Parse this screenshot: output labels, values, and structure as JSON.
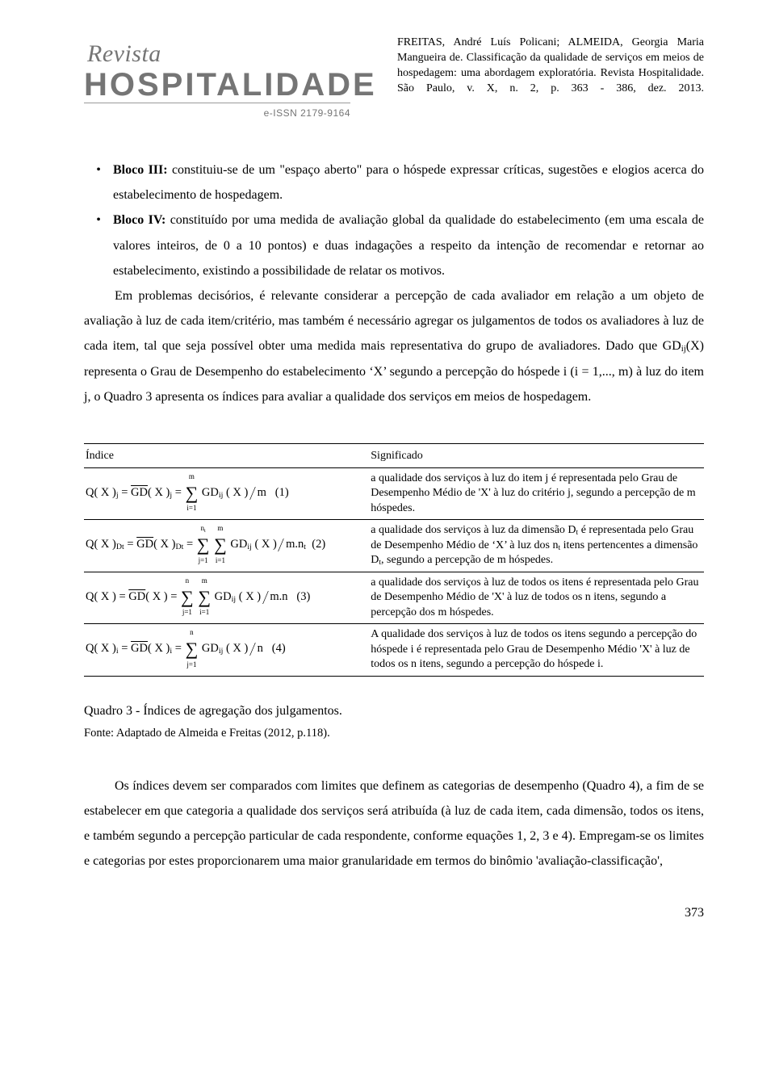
{
  "logo": {
    "top": "Revista",
    "main": "HOSPITALIDADE",
    "issn": "e-ISSN 2179-9164"
  },
  "citation": "FREITAS, André Luís Policani; ALMEIDA, Georgia Maria Mangueira de. Classificação da qualidade de serviços em meios de hospedagem: uma abordagem exploratória. Revista Hospitalidade. São Paulo, v. X, n. 2, p. 363 - 386, dez. 2013.",
  "bullets": {
    "b3_label": "Bloco III:",
    "b3_text": " constituiu-se de um \"espaço aberto\" para o hóspede expressar críticas, sugestões e elogios acerca do estabelecimento de hospedagem.",
    "b4_label": "Bloco IV:",
    "b4_text": " constituído por uma medida de avaliação global da qualidade do estabelecimento (em uma escala de valores inteiros, de 0 a 10 pontos) e duas indagações a respeito da intenção de recomendar e retornar ao estabelecimento, existindo a possibilidade de relatar os motivos."
  },
  "paragraph_main": "Em problemas decisórios, é relevante considerar a percepção de cada avaliador em relação a um objeto de avaliação à luz de cada item/critério, mas também é necessário agregar os julgamentos de todos os avaliadores à luz de cada item, tal que seja possível obter uma medida mais representativa do grupo de avaliadores. Dado que GDij(X) representa o Grau de Desempenho do estabelecimento 'X' segundo a percepção do hóspede i (i = 1,..., m) à luz do item j, o Quadro 3 apresenta os índices para avaliar a qualidade dos serviços em meios de hospedagem.",
  "table": {
    "h1": "Índice",
    "h2": "Significado",
    "rows": [
      {
        "sig": "a qualidade dos serviços à luz do item j é representada pelo Grau de Desempenho Médio de 'X' à luz do critério j, segundo a percepção de m hóspedes."
      },
      {
        "sig": "a qualidade dos serviços à luz da dimensão Dt é representada pelo Grau de Desempenho Médio de 'X' à luz dos nt itens pertencentes a dimensão Dt, segundo a percepção de m hóspedes."
      },
      {
        "sig": "a qualidade dos serviços à luz de todos os itens é representada pelo Grau de Desempenho Médio de 'X' à luz de todos os n itens, segundo a percepção dos m hóspedes."
      },
      {
        "sig": "A qualidade dos serviços à luz de todos os itens segundo a percepção do hóspede i é representada pelo Grau de Desempenho Médio 'X' à luz de todos os n itens, segundo a percepção do hóspede i."
      }
    ]
  },
  "caption": "Quadro 3 - Índices de agregação dos julgamentos.",
  "source": "Fonte: Adaptado de Almeida e Freitas (2012, p.118).",
  "closing": "Os índices devem ser comparados com limites que definem as categorias de desempenho (Quadro 4), a fim de se estabelecer em que categoria a qualidade dos serviços será atribuída (à luz de cada item, cada dimensão, todos os itens, e também segundo a percepção particular de cada respondente, conforme equações 1, 2, 3 e 4). Empregam-se os limites e categorias por estes proporcionarem uma maior granularidade em termos do binômio 'avaliação-classificação',",
  "page_number": "373"
}
